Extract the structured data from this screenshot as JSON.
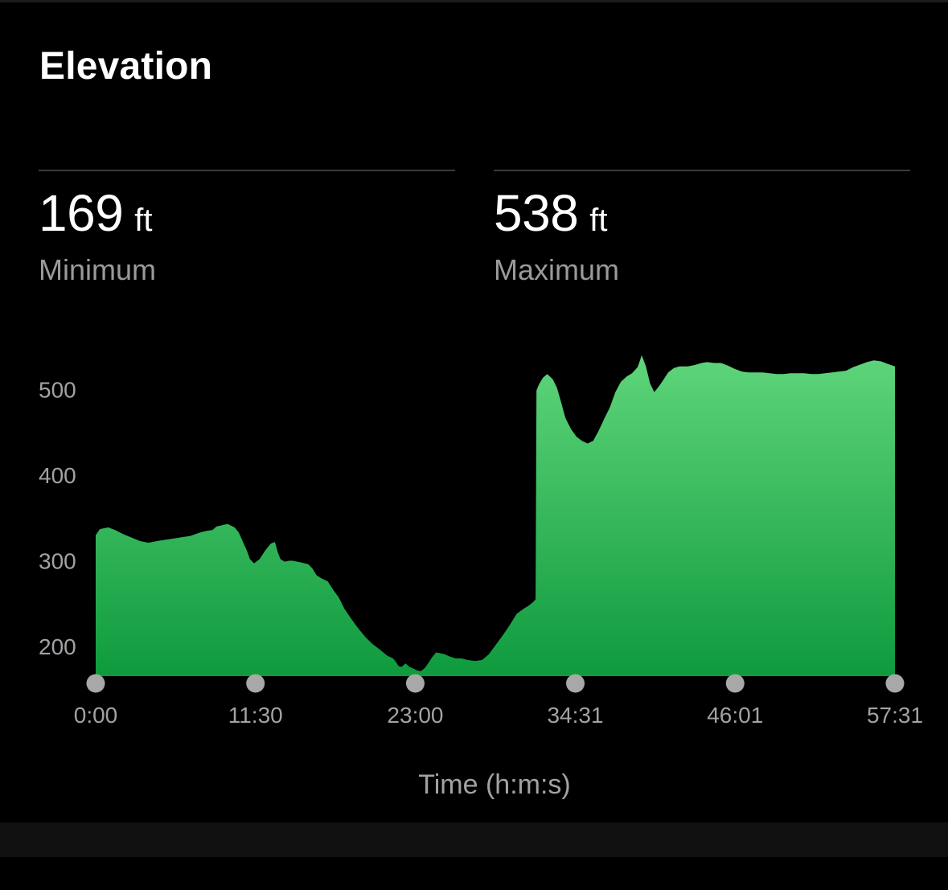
{
  "card": {
    "title": "Elevation",
    "stats": [
      {
        "value": "169",
        "unit": "ft",
        "label": "Minimum"
      },
      {
        "value": "538",
        "unit": "ft",
        "label": "Maximum"
      }
    ]
  },
  "colors": {
    "background": "#000000",
    "fill_top": "#5fd57a",
    "fill_bottom": "#0f9a3e",
    "marker": "#a8a8a8",
    "muted_text": "#9a9a9e"
  },
  "chart_data": {
    "type": "area",
    "title": "",
    "xlabel": "Time (h:m:s)",
    "ylabel": "",
    "x_unit": "minutes",
    "x_range": [
      0,
      57.52
    ],
    "ylim": [
      160,
      560
    ],
    "y_ticks": [
      200,
      300,
      400,
      500
    ],
    "x_ticks": [
      {
        "value": 0,
        "label": "0:00"
      },
      {
        "value": 11.5,
        "label": "11:30"
      },
      {
        "value": 23.0,
        "label": "23:00"
      },
      {
        "value": 34.52,
        "label": "34:31"
      },
      {
        "value": 46.02,
        "label": "46:01"
      },
      {
        "value": 57.52,
        "label": "57:31"
      }
    ],
    "grid": false,
    "legend": "none",
    "series": [
      {
        "x": [
          0,
          0.3,
          0.9,
          1.4,
          2.0,
          2.6,
          3.2,
          3.8,
          4.4,
          5.2,
          6.0,
          6.8,
          7.5,
          8.0,
          8.4,
          8.7,
          9.0,
          9.2,
          9.5,
          10.0,
          10.3,
          10.6,
          10.9,
          11.1,
          11.4,
          11.8,
          12.2,
          12.6,
          12.9,
          13.1,
          13.3,
          13.6,
          13.9,
          14.2,
          14.5,
          14.8,
          15.3,
          15.6,
          15.9,
          16.3,
          16.7,
          17.1,
          17.5,
          17.9,
          18.4,
          18.9,
          19.4,
          19.9,
          20.4,
          21.0,
          21.4,
          21.6,
          21.8,
          22.0,
          22.3,
          22.6,
          22.9,
          23.1,
          23.4,
          23.7,
          24.0,
          24.2,
          24.5,
          24.8,
          25.1,
          25.5,
          25.9,
          26.3,
          26.8,
          27.3,
          27.8,
          28.3,
          28.8,
          29.3,
          29.8,
          30.3,
          30.8,
          31.2,
          31.5,
          31.66,
          31.72,
          31.9,
          32.2,
          32.5,
          32.9,
          33.2,
          33.5,
          33.8,
          34.2,
          34.6,
          35.0,
          35.4,
          35.8,
          36.2,
          36.6,
          37.0,
          37.4,
          37.8,
          38.2,
          38.6,
          39.0,
          39.3,
          39.6,
          39.9,
          40.2,
          40.5,
          40.8,
          41.2,
          41.6,
          42.0,
          42.3,
          42.6,
          42.9,
          43.2,
          43.6,
          44.0,
          44.5,
          45.0,
          45.5,
          46.0,
          46.5,
          47.0,
          47.5,
          48.0,
          48.5,
          49.0,
          49.5,
          50.0,
          50.5,
          51.0,
          51.5,
          52.0,
          52.5,
          53.0,
          53.5,
          54.0,
          54.5,
          55.0,
          55.5,
          56.0,
          56.5,
          57.0,
          57.52
        ],
        "y": [
          330,
          337,
          339,
          336,
          331,
          327,
          323,
          321,
          323,
          325,
          327,
          329,
          333,
          335,
          336,
          340,
          341,
          342,
          343,
          339,
          333,
          322,
          311,
          302,
          297,
          302,
          312,
          320,
          322,
          310,
          302,
          299,
          300,
          300,
          299,
          298,
          296,
          291,
          283,
          279,
          276,
          266,
          257,
          244,
          232,
          221,
          211,
          203,
          197,
          189,
          186,
          182,
          177,
          176,
          180,
          176,
          174,
          172,
          171,
          175,
          182,
          187,
          193,
          192,
          191,
          188,
          186,
          186,
          184,
          183,
          184,
          191,
          202,
          213,
          225,
          238,
          244,
          248,
          252,
          255,
          499,
          506,
          514,
          518,
          512,
          502,
          485,
          467,
          454,
          445,
          440,
          437,
          440,
          452,
          466,
          479,
          497,
          509,
          515,
          519,
          526,
          540,
          527,
          507,
          497,
          503,
          510,
          520,
          525,
          527,
          527,
          527,
          528,
          529,
          531,
          532,
          531,
          531,
          528,
          524,
          521,
          520,
          520,
          520,
          519,
          518,
          518,
          519,
          519,
          519,
          518,
          518,
          519,
          520,
          521,
          522,
          526,
          529,
          532,
          534,
          533,
          530,
          527
        ]
      }
    ]
  }
}
